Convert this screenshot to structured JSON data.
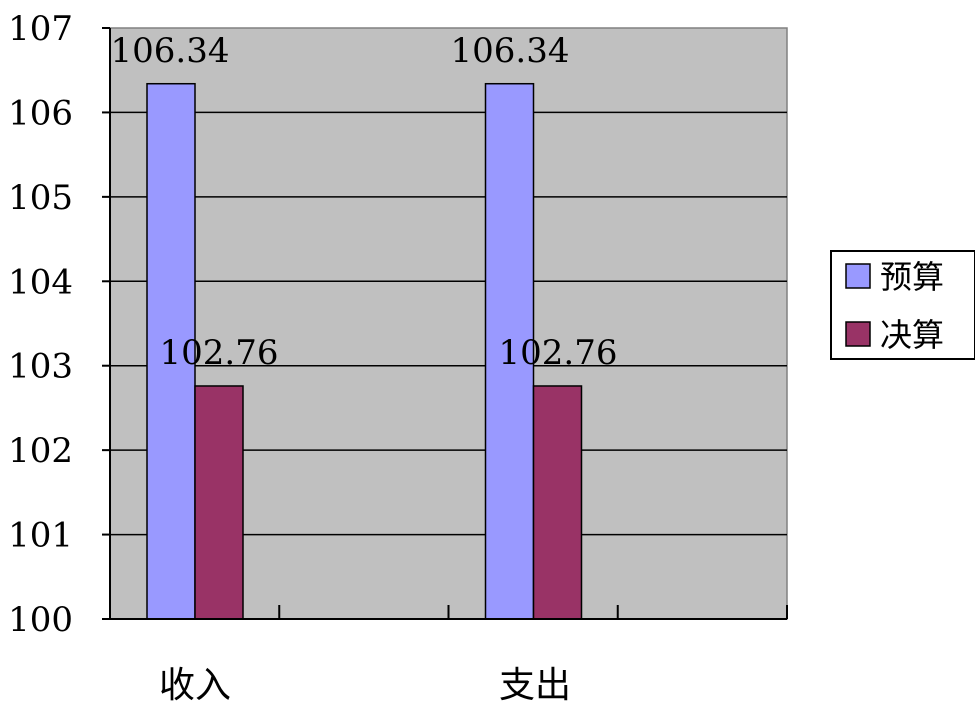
{
  "chart_data": {
    "type": "bar",
    "categories": [
      "收入",
      "支出"
    ],
    "series": [
      {
        "name": "预算",
        "values": [
          106.34,
          106.34
        ],
        "color": "#9999ff"
      },
      {
        "name": "决算",
        "values": [
          102.76,
          102.76
        ],
        "color": "#993366"
      }
    ],
    "data_labels": [
      "106.34",
      "102.76"
    ],
    "ylim": [
      100,
      107
    ],
    "yticks": [
      "100",
      "101",
      "102",
      "103",
      "104",
      "105",
      "106",
      "107"
    ],
    "grid": true,
    "legend_position": "right",
    "plot_background": "#c0c0c0"
  }
}
